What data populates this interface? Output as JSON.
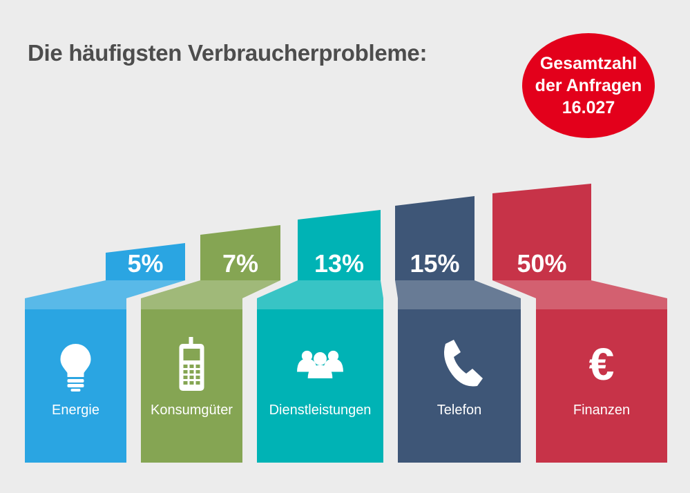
{
  "header": {
    "title": "Die häufigsten Verbraucherprobleme:"
  },
  "badge": {
    "line1": "Gesamtzahl",
    "line2": "der Anfragen",
    "total": "16.027"
  },
  "chart_data": {
    "type": "bar",
    "title": "Die häufigsten Verbraucherprobleme:",
    "categories": [
      "Energie",
      "Konsumgüter",
      "Dienstleistungen",
      "Telefon",
      "Finanzen"
    ],
    "values": [
      5,
      7,
      13,
      15,
      50
    ],
    "value_labels": [
      "5%",
      "7%",
      "13%",
      "15%",
      "50%"
    ],
    "unit": "%",
    "colors": [
      "#2aa5e2",
      "#85a553",
      "#00b3b5",
      "#3e5677",
      "#c73348"
    ],
    "icons": [
      "lightbulb-icon",
      "mobile-phone-icon",
      "people-icon",
      "phone-handset-icon",
      "euro-icon"
    ]
  }
}
